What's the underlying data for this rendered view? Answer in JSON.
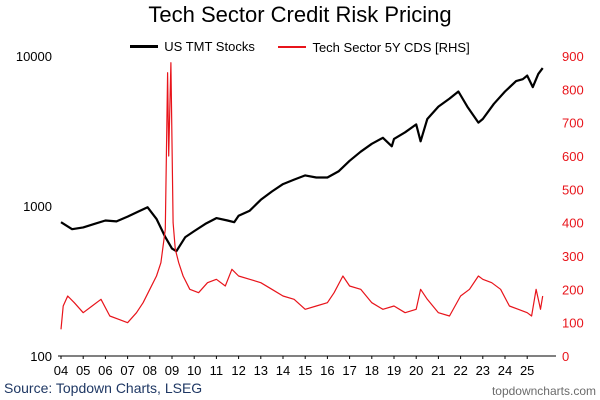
{
  "chart_data": {
    "type": "line",
    "title": "Tech Sector Credit Risk Pricing",
    "source": "Source: Topdown Charts, LSEG",
    "credit": "topdowncharts.com",
    "legend_placement": "top-center",
    "grid": false,
    "x_ticks": [
      "04",
      "05",
      "06",
      "07",
      "08",
      "09",
      "10",
      "11",
      "12",
      "13",
      "14",
      "15",
      "16",
      "17",
      "18",
      "19",
      "20",
      "21",
      "22",
      "23",
      "24",
      "25"
    ],
    "left_axis": {
      "scale": "log",
      "ticks": [
        "100",
        "1000",
        "10000"
      ],
      "range": [
        100,
        10000
      ],
      "color": "#000000"
    },
    "right_axis": {
      "scale": "linear",
      "ticks": [
        "0",
        "100",
        "200",
        "300",
        "400",
        "500",
        "600",
        "700",
        "800",
        "900"
      ],
      "range": [
        0,
        900
      ],
      "color": "#e8141b"
    },
    "series": [
      {
        "name": "US TMT Stocks",
        "axis": "left",
        "color": "#000000",
        "x": [
          2004.0,
          2004.5,
          2005.0,
          2005.5,
          2006.0,
          2006.5,
          2007.0,
          2007.5,
          2007.9,
          2008.3,
          2008.7,
          2009.0,
          2009.2,
          2009.6,
          2010.0,
          2010.5,
          2011.0,
          2011.5,
          2011.8,
          2012.0,
          2012.5,
          2013.0,
          2013.5,
          2014.0,
          2014.5,
          2015.0,
          2015.5,
          2016.0,
          2016.5,
          2017.0,
          2017.5,
          2018.0,
          2018.5,
          2018.9,
          2019.0,
          2019.5,
          2020.0,
          2020.2,
          2020.5,
          2021.0,
          2021.5,
          2021.9,
          2022.3,
          2022.8,
          2023.0,
          2023.5,
          2024.0,
          2024.5,
          2024.8,
          2025.0,
          2025.25,
          2025.5,
          2025.7
        ],
        "values": [
          780,
          700,
          720,
          760,
          800,
          790,
          850,
          920,
          980,
          820,
          620,
          520,
          500,
          620,
          680,
          760,
          830,
          800,
          780,
          860,
          930,
          1100,
          1250,
          1400,
          1500,
          1600,
          1550,
          1550,
          1700,
          2000,
          2300,
          2600,
          2850,
          2500,
          2800,
          3100,
          3500,
          2700,
          3800,
          4600,
          5200,
          5800,
          4600,
          3600,
          3800,
          4800,
          5800,
          6800,
          7000,
          7400,
          6200,
          7600,
          8300
        ]
      },
      {
        "name": "Tech Sector 5Y CDS [RHS]",
        "axis": "right",
        "color": "#e8141b",
        "x": [
          2004.0,
          2004.1,
          2004.3,
          2004.6,
          2005.0,
          2005.4,
          2005.8,
          2006.2,
          2006.6,
          2007.0,
          2007.4,
          2007.7,
          2008.0,
          2008.3,
          2008.5,
          2008.7,
          2008.8,
          2008.85,
          2008.95,
          2009.05,
          2009.15,
          2009.3,
          2009.5,
          2009.8,
          2010.2,
          2010.6,
          2011.0,
          2011.4,
          2011.7,
          2012.0,
          2012.5,
          2013.0,
          2013.5,
          2014.0,
          2014.5,
          2015.0,
          2015.5,
          2016.0,
          2016.3,
          2016.7,
          2017.0,
          2017.5,
          2018.0,
          2018.5,
          2019.0,
          2019.5,
          2020.0,
          2020.2,
          2020.5,
          2021.0,
          2021.5,
          2022.0,
          2022.4,
          2022.8,
          2023.0,
          2023.4,
          2023.8,
          2024.2,
          2024.6,
          2025.0,
          2025.2,
          2025.4,
          2025.6,
          2025.7
        ],
        "values": [
          80,
          150,
          180,
          160,
          130,
          150,
          170,
          120,
          110,
          100,
          130,
          160,
          200,
          240,
          280,
          380,
          850,
          600,
          880,
          400,
          320,
          280,
          240,
          200,
          190,
          220,
          230,
          210,
          260,
          240,
          230,
          220,
          200,
          180,
          170,
          140,
          150,
          160,
          190,
          240,
          210,
          200,
          160,
          140,
          150,
          130,
          140,
          200,
          170,
          130,
          120,
          180,
          200,
          240,
          230,
          220,
          200,
          150,
          140,
          130,
          120,
          200,
          140,
          180
        ]
      }
    ]
  }
}
